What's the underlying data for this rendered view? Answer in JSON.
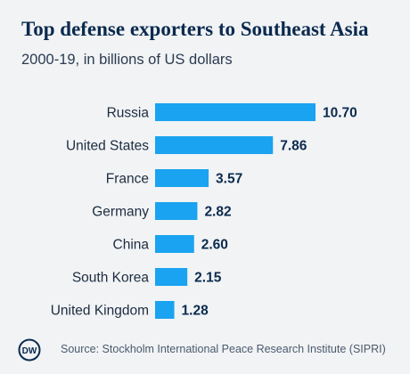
{
  "title": "Top defense exporters to Southeast Asia",
  "subtitle": "2000-19, in billions of US dollars",
  "source": "Source: Stockholm International Peace Research Institute (SIPRI)",
  "logo_text": "DW",
  "colors": {
    "bar": "#1aa3f0",
    "text": "#0b2a4e",
    "background": "#f1f3f5"
  },
  "chart_data": {
    "type": "bar",
    "orientation": "horizontal",
    "title": "Top defense exporters to Southeast Asia",
    "subtitle": "2000-19, in billions of US dollars",
    "categories": [
      "Russia",
      "United States",
      "France",
      "Germany",
      "China",
      "South Korea",
      "United Kingdom"
    ],
    "values": [
      10.7,
      7.86,
      3.57,
      2.82,
      2.6,
      2.15,
      1.28
    ],
    "value_labels": [
      "10.70",
      "7.86",
      "3.57",
      "2.82",
      "2.60",
      "2.15",
      "1.28"
    ],
    "xlabel": "",
    "ylabel": "",
    "grid": false,
    "legend": "none"
  }
}
